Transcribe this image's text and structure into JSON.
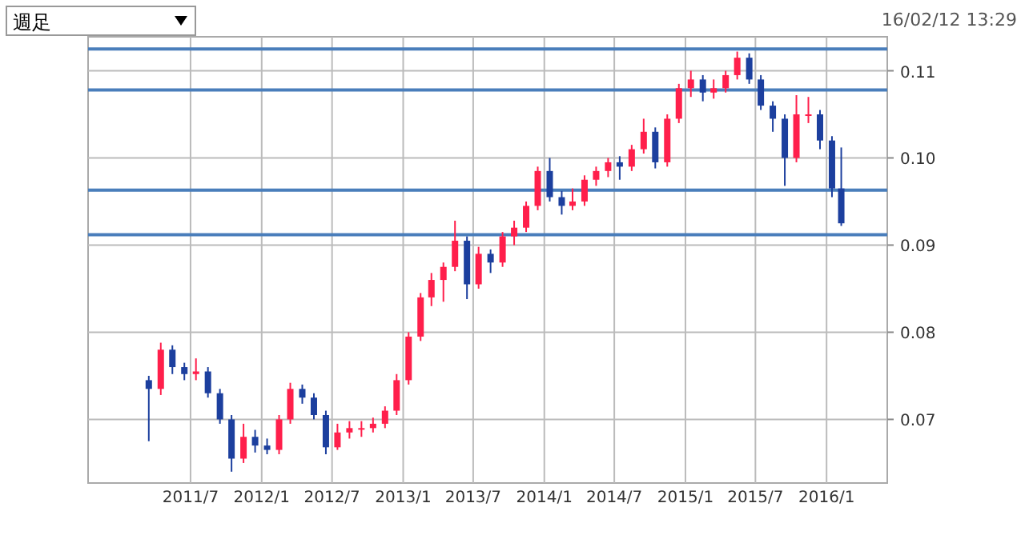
{
  "chart_data": {
    "type": "candlestick",
    "title": "週足",
    "annotations": [
      "16/02/12 13:29"
    ],
    "x": [
      "2011-03-15",
      "2011-04-15",
      "2011-05-15",
      "2011-06-15",
      "2011-07-15",
      "2011-08-15",
      "2011-09-15",
      "2011-10-15",
      "2011-11-15",
      "2011-12-15",
      "2012-01-15",
      "2012-02-15",
      "2012-03-15",
      "2012-04-15",
      "2012-05-15",
      "2012-06-15",
      "2012-07-15",
      "2012-08-15",
      "2012-09-15",
      "2012-10-15",
      "2012-11-15",
      "2012-12-15",
      "2013-01-15",
      "2013-02-15",
      "2013-03-15",
      "2013-04-15",
      "2013-05-15",
      "2013-06-15",
      "2013-07-15",
      "2013-08-15",
      "2013-09-15",
      "2013-10-15",
      "2013-11-15",
      "2013-12-15",
      "2014-01-15",
      "2014-02-15",
      "2014-03-15",
      "2014-04-15",
      "2014-05-15",
      "2014-06-15",
      "2014-07-15",
      "2014-08-15",
      "2014-09-15",
      "2014-10-15",
      "2014-11-15",
      "2014-12-15",
      "2015-01-15",
      "2015-02-15",
      "2015-03-15",
      "2015-04-15",
      "2015-05-15",
      "2015-06-15",
      "2015-07-15",
      "2015-08-15",
      "2015-09-15",
      "2015-10-15",
      "2015-11-15",
      "2015-12-15",
      "2016-01-15",
      "2016-02-08"
    ],
    "ohlc": [
      [
        0.0745,
        0.075,
        0.0675,
        0.0735
      ],
      [
        0.0735,
        0.0788,
        0.0728,
        0.078
      ],
      [
        0.078,
        0.0785,
        0.0752,
        0.076
      ],
      [
        0.076,
        0.0765,
        0.0745,
        0.0752
      ],
      [
        0.0752,
        0.077,
        0.0745,
        0.0755
      ],
      [
        0.0755,
        0.076,
        0.0725,
        0.073
      ],
      [
        0.073,
        0.0735,
        0.0695,
        0.07
      ],
      [
        0.07,
        0.0705,
        0.064,
        0.0655
      ],
      [
        0.0655,
        0.0695,
        0.065,
        0.068
      ],
      [
        0.068,
        0.0688,
        0.0662,
        0.067
      ],
      [
        0.067,
        0.0678,
        0.066,
        0.0665
      ],
      [
        0.0665,
        0.0705,
        0.066,
        0.07
      ],
      [
        0.07,
        0.0742,
        0.0695,
        0.0735
      ],
      [
        0.0735,
        0.074,
        0.0718,
        0.0725
      ],
      [
        0.0725,
        0.073,
        0.07,
        0.0705
      ],
      [
        0.0705,
        0.071,
        0.066,
        0.0668
      ],
      [
        0.0668,
        0.0695,
        0.0665,
        0.0685
      ],
      [
        0.0685,
        0.0698,
        0.0678,
        0.069
      ],
      [
        0.069,
        0.0698,
        0.068,
        0.069
      ],
      [
        0.069,
        0.0702,
        0.0685,
        0.0695
      ],
      [
        0.0695,
        0.0715,
        0.069,
        0.071
      ],
      [
        0.071,
        0.0752,
        0.0705,
        0.0745
      ],
      [
        0.0745,
        0.08,
        0.074,
        0.0795
      ],
      [
        0.0795,
        0.0845,
        0.079,
        0.084
      ],
      [
        0.084,
        0.0868,
        0.083,
        0.086
      ],
      [
        0.086,
        0.088,
        0.0835,
        0.0875
      ],
      [
        0.0875,
        0.0928,
        0.087,
        0.0905
      ],
      [
        0.0905,
        0.091,
        0.0838,
        0.0855
      ],
      [
        0.0855,
        0.0898,
        0.085,
        0.089
      ],
      [
        0.089,
        0.0895,
        0.0868,
        0.088
      ],
      [
        0.088,
        0.0915,
        0.0875,
        0.091
      ],
      [
        0.091,
        0.0928,
        0.09,
        0.092
      ],
      [
        0.092,
        0.095,
        0.0915,
        0.0945
      ],
      [
        0.0945,
        0.099,
        0.094,
        0.0985
      ],
      [
        0.0985,
        0.1,
        0.095,
        0.0955
      ],
      [
        0.0955,
        0.0962,
        0.0935,
        0.0945
      ],
      [
        0.0945,
        0.0965,
        0.094,
        0.095
      ],
      [
        0.095,
        0.098,
        0.0945,
        0.0975
      ],
      [
        0.0975,
        0.099,
        0.0968,
        0.0985
      ],
      [
        0.0985,
        0.1,
        0.0978,
        0.0995
      ],
      [
        0.0995,
        0.1002,
        0.0975,
        0.099
      ],
      [
        0.099,
        0.1015,
        0.0985,
        0.101
      ],
      [
        0.101,
        0.1045,
        0.1005,
        0.103
      ],
      [
        0.103,
        0.1035,
        0.0988,
        0.0995
      ],
      [
        0.0995,
        0.105,
        0.099,
        0.1045
      ],
      [
        0.1045,
        0.1085,
        0.104,
        0.108
      ],
      [
        0.108,
        0.11,
        0.107,
        0.109
      ],
      [
        0.109,
        0.1095,
        0.1065,
        0.1075
      ],
      [
        0.1075,
        0.109,
        0.1068,
        0.108
      ],
      [
        0.108,
        0.11,
        0.1075,
        0.1095
      ],
      [
        0.1095,
        0.1122,
        0.109,
        0.1115
      ],
      [
        0.1115,
        0.112,
        0.1085,
        0.109
      ],
      [
        0.109,
        0.1095,
        0.1055,
        0.106
      ],
      [
        0.106,
        0.1065,
        0.103,
        0.1045
      ],
      [
        0.1045,
        0.105,
        0.0968,
        0.1
      ],
      [
        0.1,
        0.1072,
        0.0995,
        0.105
      ],
      [
        0.105,
        0.107,
        0.104,
        0.105
      ],
      [
        0.105,
        0.1055,
        0.101,
        0.102
      ],
      [
        0.102,
        0.1025,
        0.0955,
        0.0965
      ],
      [
        0.0965,
        0.1012,
        0.0922,
        0.0925
      ]
    ],
    "colors": [
      "#1c3f9e",
      "#ff1f4b",
      "#1c3f9e",
      "#1c3f9e",
      "#ff1f4b",
      "#1c3f9e",
      "#1c3f9e",
      "#1c3f9e",
      "#ff1f4b",
      "#1c3f9e",
      "#1c3f9e",
      "#ff1f4b",
      "#ff1f4b",
      "#1c3f9e",
      "#1c3f9e",
      "#1c3f9e",
      "#ff1f4b",
      "#ff1f4b",
      "#ff1f4b",
      "#ff1f4b",
      "#ff1f4b",
      "#ff1f4b",
      "#ff1f4b",
      "#ff1f4b",
      "#ff1f4b",
      "#ff1f4b",
      "#ff1f4b",
      "#1c3f9e",
      "#ff1f4b",
      "#1c3f9e",
      "#ff1f4b",
      "#ff1f4b",
      "#ff1f4b",
      "#ff1f4b",
      "#1c3f9e",
      "#1c3f9e",
      "#ff1f4b",
      "#ff1f4b",
      "#ff1f4b",
      "#ff1f4b",
      "#1c3f9e",
      "#ff1f4b",
      "#ff1f4b",
      "#1c3f9e",
      "#ff1f4b",
      "#ff1f4b",
      "#ff1f4b",
      "#1c3f9e",
      "#ff1f4b",
      "#ff1f4b",
      "#ff1f4b",
      "#1c3f9e",
      "#1c3f9e",
      "#1c3f9e",
      "#1c3f9e",
      "#ff1f4b",
      "#ff1f4b",
      "#1c3f9e",
      "#1c3f9e",
      "#1c3f9e"
    ],
    "xlim": [
      "2010-10-09",
      "2016-06-06"
    ],
    "xticks": [
      {
        "value": "2011-07-01",
        "label": "2011/7"
      },
      {
        "value": "2012-01-01",
        "label": "2012/1"
      },
      {
        "value": "2012-07-01",
        "label": "2012/7"
      },
      {
        "value": "2013-01-01",
        "label": "2013/1"
      },
      {
        "value": "2013-07-01",
        "label": "2013/7"
      },
      {
        "value": "2014-01-01",
        "label": "2014/1"
      },
      {
        "value": "2014-07-01",
        "label": "2014/7"
      },
      {
        "value": "2015-01-01",
        "label": "2015/1"
      },
      {
        "value": "2015-07-01",
        "label": "2015/7"
      },
      {
        "value": "2016-01-01",
        "label": "2016/1"
      }
    ],
    "ylim": [
      0.0627,
      0.1139
    ],
    "yticks": [
      0.07,
      0.08,
      0.09,
      {
        "value": 0.1,
        "label": "0.10"
      },
      0.11
    ],
    "grid": true,
    "ref_lines": [
      {
        "axis": "y",
        "value": 0.1125,
        "color": "#4a7ebb"
      },
      {
        "axis": "y",
        "value": 0.0963,
        "color": "#4a7ebb"
      },
      {
        "axis": "y",
        "value": 0.1078,
        "color": "#4a7ebb"
      },
      {
        "axis": "y",
        "value": 0.0912,
        "color": "#4a7ebb"
      }
    ]
  }
}
